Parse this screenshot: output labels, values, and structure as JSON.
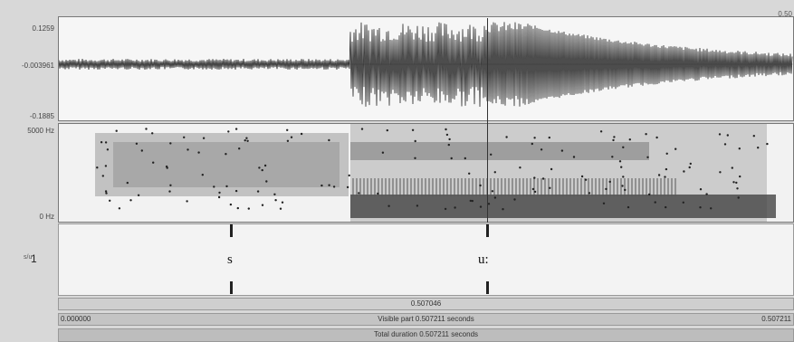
{
  "waveform": {
    "y_max": "0.1259",
    "y_zero": "-0.003961",
    "y_min": "-0.1885",
    "top_right_value": "0.50"
  },
  "spectrogram": {
    "freq_top": "5000 Hz",
    "freq_bottom": "0 Hz"
  },
  "tier": {
    "name": "s/u",
    "number": "1",
    "intervals": [
      {
        "label": "s"
      },
      {
        "label": "u:"
      }
    ]
  },
  "selection": {
    "duration": "0.507046"
  },
  "visible": {
    "start": "0.000000",
    "label": "Visible part 0.507211 seconds",
    "end": "0.507211"
  },
  "total": {
    "label": "Total duration 0.507211 seconds"
  }
}
